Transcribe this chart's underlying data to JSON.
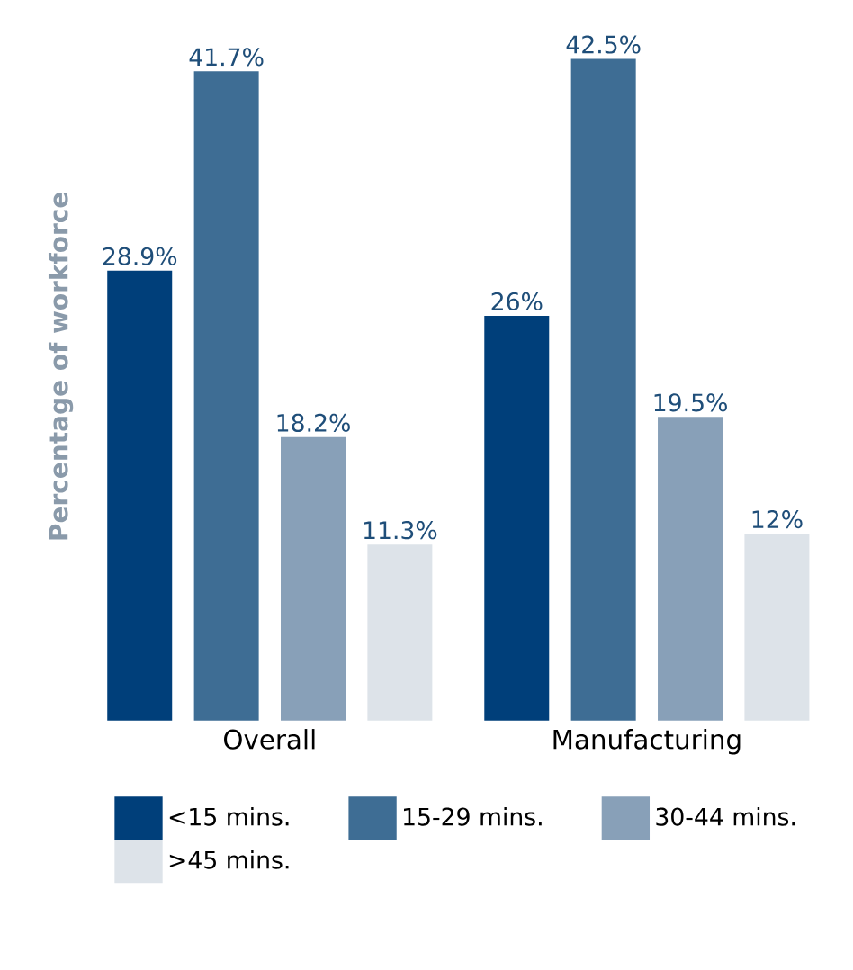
{
  "chart_data": {
    "type": "bar",
    "ylabel": "Percentage of workforce",
    "categories": [
      "Overall",
      "Manufacturing"
    ],
    "series": [
      {
        "name": "<15 mins.",
        "color": "#003f7a",
        "values": [
          28.9,
          26
        ],
        "value_labels": [
          "28.9%",
          "26%"
        ]
      },
      {
        "name": "15-29 mins.",
        "color": "#3e6d94",
        "values": [
          41.7,
          42.5
        ],
        "value_labels": [
          "41.7%",
          "42.5%"
        ]
      },
      {
        "name": "30-44 mins.",
        "color": "#88a0b8",
        "values": [
          18.2,
          19.5
        ],
        "value_labels": [
          "18.2%",
          "19.5%"
        ]
      },
      {
        "name": ">45 mins.",
        "color": "#dde3e9",
        "values": [
          11.3,
          12
        ],
        "value_labels": [
          "11.3%",
          "12%"
        ]
      }
    ],
    "tick_labels": "x",
    "grid": false,
    "legend": "bottom"
  }
}
